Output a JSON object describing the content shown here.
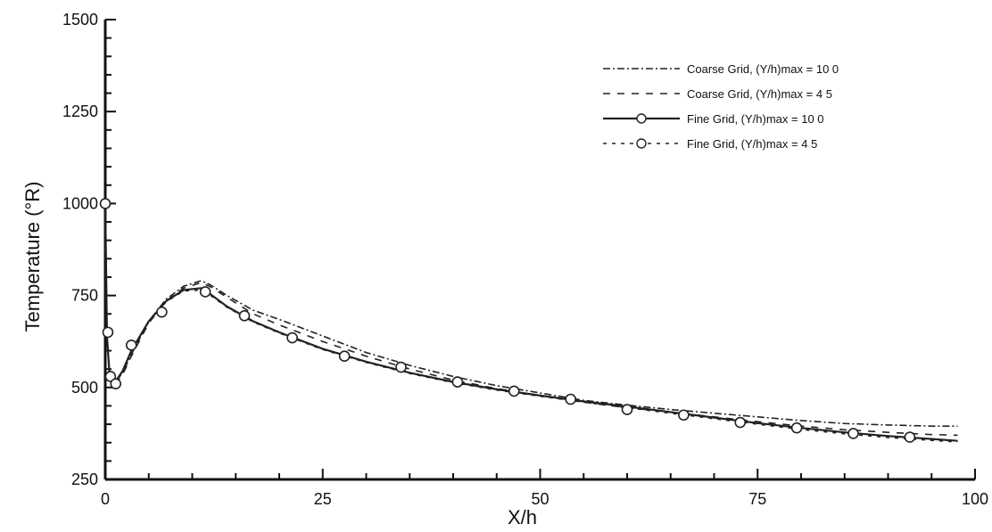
{
  "chart_data": {
    "type": "line",
    "title": "",
    "xlabel": "X/h",
    "ylabel": "Temperature  (°R)",
    "xlim": [
      0,
      100
    ],
    "ylim": [
      250,
      1500
    ],
    "xticks": [
      "0",
      "25",
      "50",
      "75",
      "100"
    ],
    "yticks": [
      "250",
      "500",
      "750",
      "1000",
      "1250",
      "1500"
    ],
    "grid": false,
    "legend_position": "top-right",
    "series": [
      {
        "name": "Coarse Grid, (Y/h)max = 10 0",
        "dash": "8,3,2,3",
        "marker": "none",
        "x": [
          0,
          0.2,
          0.5,
          1,
          2,
          3,
          5,
          7,
          9,
          11,
          12,
          14,
          17,
          20,
          25,
          30,
          35,
          40,
          45,
          50,
          55,
          60,
          65,
          70,
          75,
          80,
          85,
          90,
          95,
          98
        ],
        "y": [
          1000,
          640,
          540,
          510,
          540,
          590,
          680,
          740,
          775,
          790,
          780,
          750,
          710,
          685,
          640,
          595,
          560,
          530,
          505,
          485,
          465,
          452,
          440,
          430,
          420,
          410,
          402,
          398,
          395,
          395
        ]
      },
      {
        "name": "Coarse Grid, (Y/h)max = 4 5",
        "dash": "8,8",
        "marker": "none",
        "x": [
          0,
          0.2,
          0.5,
          1,
          2,
          3,
          5,
          7,
          9,
          11,
          12,
          14,
          17,
          20,
          25,
          30,
          35,
          40,
          45,
          50,
          55,
          60,
          65,
          70,
          75,
          80,
          85,
          90,
          95,
          98
        ],
        "y": [
          1000,
          635,
          535,
          505,
          535,
          585,
          675,
          735,
          770,
          785,
          775,
          745,
          700,
          670,
          625,
          585,
          550,
          520,
          497,
          478,
          460,
          445,
          433,
          420,
          407,
          395,
          385,
          378,
          372,
          370
        ]
      },
      {
        "name": "Fine Grid, (Y/h)max = 10 0",
        "dash": "",
        "marker": "circle",
        "x": [
          0,
          0.2,
          0.5,
          1,
          2,
          3,
          5,
          7,
          9,
          11,
          12,
          14,
          17,
          20,
          25,
          30,
          35,
          40,
          45,
          50,
          55,
          60,
          65,
          70,
          75,
          80,
          85,
          90,
          95,
          98
        ],
        "y": [
          1000,
          640,
          530,
          510,
          545,
          600,
          680,
          735,
          765,
          770,
          755,
          720,
          680,
          650,
          605,
          570,
          540,
          515,
          495,
          478,
          462,
          448,
          433,
          418,
          403,
          390,
          378,
          368,
          360,
          355
        ]
      },
      {
        "name": "Fine Grid, (Y/h)max = 4 5",
        "dash": "4,6",
        "marker": "circle",
        "x": [
          0,
          0.2,
          0.5,
          1,
          2,
          3,
          5,
          7,
          9,
          11,
          12,
          14,
          17,
          20,
          25,
          30,
          35,
          40,
          45,
          50,
          55,
          60,
          65,
          70,
          75,
          80,
          85,
          90,
          95,
          98
        ],
        "y": [
          1000,
          638,
          528,
          508,
          543,
          598,
          678,
          733,
          762,
          765,
          752,
          718,
          678,
          648,
          603,
          568,
          538,
          513,
          493,
          476,
          460,
          445,
          430,
          415,
          400,
          386,
          374,
          364,
          356,
          352
        ]
      }
    ],
    "marker_points": {
      "x": [
        0,
        0.3,
        0.6,
        1.2,
        3,
        6.5,
        11.5,
        16,
        21.5,
        27.5,
        34,
        40.5,
        47,
        53.5,
        60,
        66.5,
        73,
        79.5,
        86,
        92.5
      ],
      "y": [
        1000,
        650,
        530,
        510,
        615,
        705,
        760,
        695,
        635,
        585,
        555,
        515,
        490,
        468,
        440,
        425,
        405,
        390,
        375,
        365
      ]
    }
  }
}
